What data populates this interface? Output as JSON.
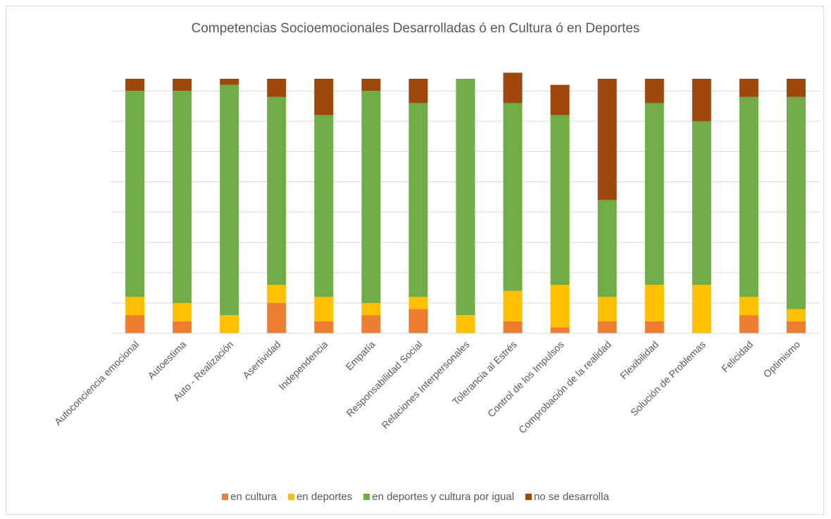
{
  "chart_data": {
    "type": "bar",
    "stacked": true,
    "title": "Competencias Socioemocionales Desarrolladas ó en Cultura ó en Deportes",
    "xlabel": "",
    "ylabel": "",
    "y_tick_labels_shown": false,
    "ylim": [
      0,
      42
    ],
    "grid": true,
    "legend_position": "bottom",
    "categories": [
      "Autoconciencia emocional",
      "Autoestima",
      "Auto - Realización",
      "Asertividad",
      "Independencia",
      "Empatía",
      "Responsabilidad Social",
      "Relaciones Interpersonales",
      "Tolerancia al Estrés",
      "Control de los Impulsos",
      "Comprobación de la realidad",
      "Flexibilidad",
      "Solución de Problemas",
      "Felicidad",
      "Optimismo"
    ],
    "series": [
      {
        "name": "en cultura",
        "color": "#ED7D31",
        "values": [
          3,
          2,
          0,
          5,
          2,
          3,
          4,
          0,
          2,
          1,
          2,
          2,
          0,
          3,
          2
        ]
      },
      {
        "name": "en deportes",
        "color": "#FFC000",
        "values": [
          3,
          3,
          3,
          3,
          4,
          2,
          2,
          3,
          5,
          7,
          4,
          6,
          8,
          3,
          2
        ]
      },
      {
        "name": "en deportes y cultura por igual",
        "color": "#70AD47",
        "values": [
          34,
          35,
          38,
          31,
          30,
          35,
          32,
          39,
          31,
          28,
          16,
          30,
          27,
          33,
          35
        ]
      },
      {
        "name": "no se desarrolla",
        "color": "#9E480E",
        "values": [
          2,
          2,
          1,
          3,
          6,
          2,
          4,
          0,
          5,
          5,
          20,
          4,
          7,
          3,
          3
        ]
      }
    ]
  }
}
